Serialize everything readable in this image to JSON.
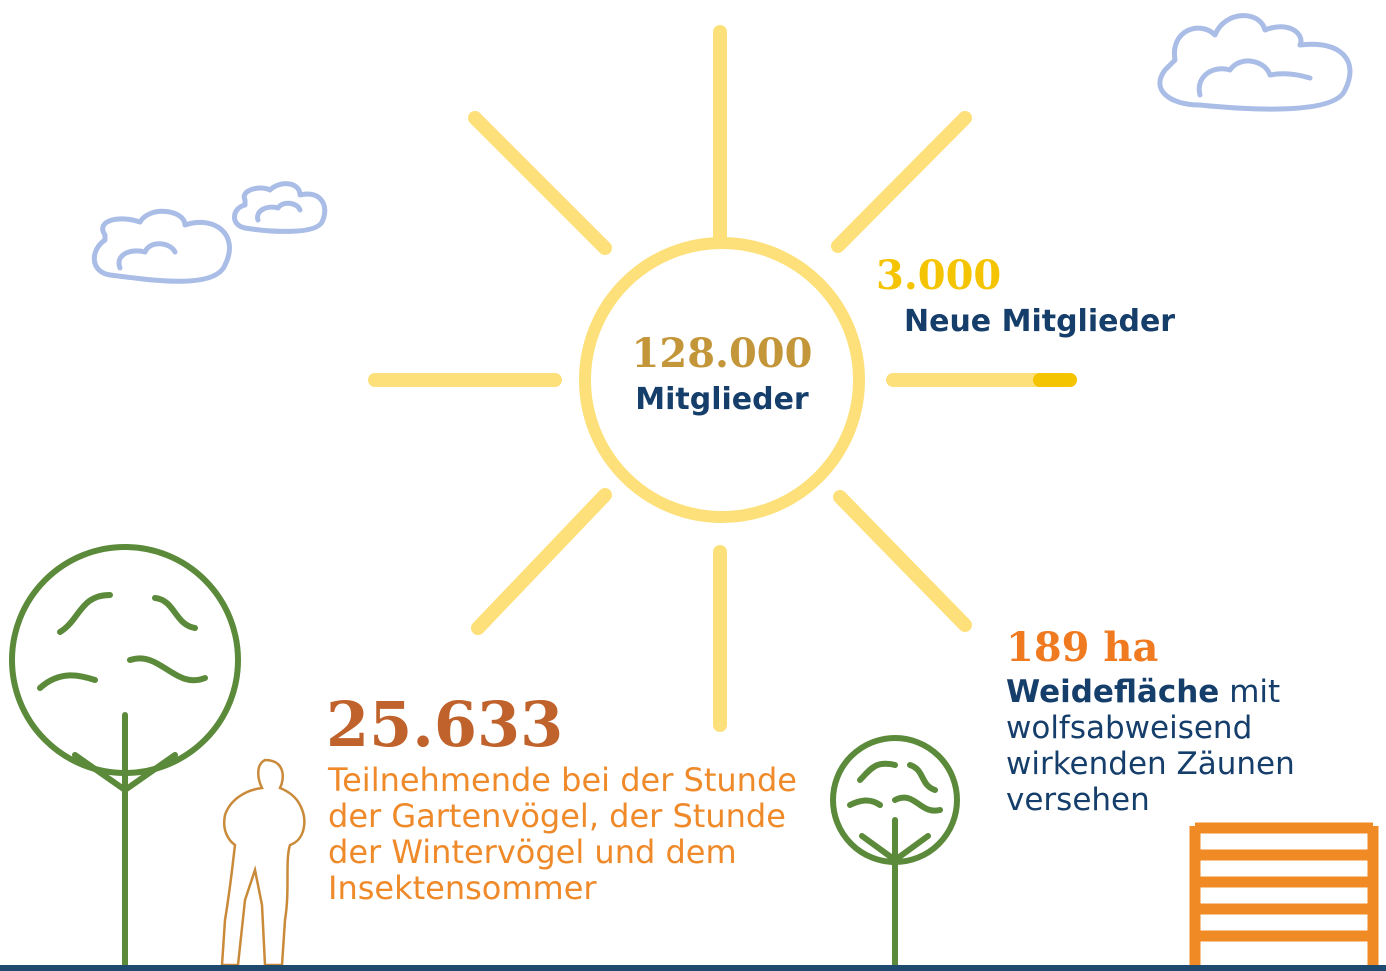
{
  "sun": {
    "value": "128.000",
    "label": "Mitglieder"
  },
  "new_members": {
    "value": "3.000",
    "label": "Neue Mitglieder"
  },
  "participants": {
    "value": "25.633",
    "label": "Teilnehmende bei der Stunde der Gartenvögel, der Stunde der Wintervögel und dem Insektensommer"
  },
  "pasture": {
    "value": "189 ha",
    "label_bold": "Weidefläche",
    "label": "mit wolfsabweisend wirkenden Zäunen versehen"
  }
}
